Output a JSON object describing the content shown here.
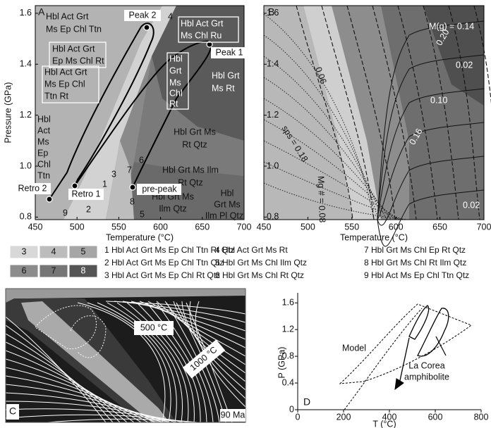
{
  "figure": {
    "panelA": {
      "letter": "A",
      "xlabel": "Temperature (°C)",
      "ylabel": "Pressure (GPa)",
      "xlim": [
        450,
        700
      ],
      "ylim": [
        0.79,
        1.63
      ],
      "xticks": [
        450,
        500,
        550,
        600,
        650,
        700
      ],
      "yticks": [
        0.8,
        {
          "value": 1,
          "label": "1.0"
        },
        1.2,
        1.4,
        1.6
      ],
      "fields": [
        {
          "lines": [
            "Hbl Act Grt",
            "Ms Ep Chl Ttn"
          ]
        },
        {
          "lines": [
            "Hbl Act Grt",
            "Ep Ms Chl Rt"
          ]
        },
        {
          "lines": [
            "Hbl Act Grt",
            "Ms Ep Chl",
            "Ttn Rt"
          ]
        },
        {
          "lines": [
            "Hbl",
            "Grt",
            "Ms",
            "Chl",
            "Rt"
          ]
        },
        {
          "lines": [
            "Hbl Act Grt",
            "Ms Chl Ru"
          ]
        },
        {
          "lines": [
            "Hbl Grt",
            "Ms Rt"
          ]
        },
        {
          "lines": [
            "Hbl",
            "Act",
            "Ms",
            "Ep",
            "Chl",
            "Ttn"
          ]
        },
        {
          "lines": [
            "Hbl Grt Ms",
            "Rt Qtz"
          ]
        },
        {
          "lines": [
            "Hbl Grt Ms Ilm",
            "Rt Qtz"
          ]
        },
        {
          "lines": [
            "Hbl Grt Ms",
            "Ilm Qtz"
          ]
        },
        {
          "lines": [
            "Hbl",
            "Grt Ms",
            "Ilm Pl Qtz"
          ]
        }
      ],
      "numbers": [
        "1",
        "2",
        "3",
        "4",
        "5",
        "6",
        "7",
        "8",
        "9"
      ],
      "points": [
        "Peak 2",
        "Peak 1",
        "Retro 2",
        "Retro 1",
        "pre-peak"
      ]
    },
    "panelB": {
      "letter": "B",
      "xlabel": "Temperature (°C)",
      "xlim": [
        450,
        700
      ],
      "ylim": [
        0.79,
        1.63
      ],
      "xticks": [
        450,
        500,
        550,
        600,
        650,
        700
      ],
      "yticks": [
        0.8,
        {
          "value": 1,
          "label": "1.0"
        },
        1.2,
        1.4,
        1.6
      ],
      "contours": [
        "M(g) = 0.14",
        "0.20",
        "0.02",
        "0.10",
        "0.16",
        "0.06",
        "sps = 0.18",
        "Mg # = 0.08",
        "0.02"
      ]
    },
    "legend": {
      "swatches": [
        "3",
        "4",
        "5",
        "6",
        "7",
        "8"
      ],
      "entries": [
        "1 Hbl Act Grt Ms Ep Chl Ttn Rt Qtz",
        "2 Hbl Act Grt Ms Ep Chl Ttn Qtz",
        "3 Hbl Act Grt Ms Ep Chl Rt Qtz",
        "4 Hbl Act Grt Ms Rt",
        "5 Hbl Grt Ms Chl Ilm Qtz",
        "6 Hbl Grt Ms Chl Rt Qtz",
        "7 Hbl Grt Ms Chl Ep Rt Qtz",
        "8 Hbl Grt Ms Chl Rt Ilm Qtz",
        "9 Hbl Act Ms Ep Chl Ttn Qtz"
      ]
    },
    "panelC": {
      "letter": "C",
      "labels": [
        "500 °C",
        "1000 °C",
        "90 Ma"
      ]
    },
    "panelD": {
      "letter": "D",
      "xlabel": "T (°C)",
      "ylabel": "P (GPa)",
      "xlim": [
        0,
        800
      ],
      "ylim": [
        0,
        1.75
      ],
      "xticks": [
        0,
        200,
        400,
        600,
        800
      ],
      "yticks": [
        0,
        0.4,
        0.8,
        1.2,
        1.6
      ],
      "labels": [
        "Model",
        "La Corea",
        "amphibolite"
      ]
    }
  }
}
